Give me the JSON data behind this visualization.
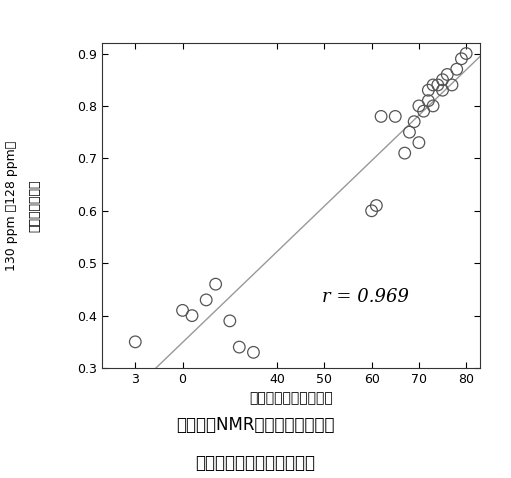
{
  "x_data": [
    10,
    20,
    22,
    25,
    27,
    30,
    32,
    35,
    60,
    61,
    62,
    65,
    67,
    68,
    69,
    70,
    70,
    71,
    72,
    72,
    73,
    73,
    74,
    75,
    75,
    76,
    77,
    78,
    79,
    80
  ],
  "y_data": [
    0.35,
    0.41,
    0.4,
    0.43,
    0.46,
    0.39,
    0.34,
    0.33,
    0.6,
    0.61,
    0.78,
    0.78,
    0.71,
    0.75,
    0.77,
    0.73,
    0.8,
    0.79,
    0.81,
    0.83,
    0.84,
    0.8,
    0.84,
    0.85,
    0.83,
    0.86,
    0.84,
    0.87,
    0.89,
    0.9
  ],
  "xlim": [
    3,
    83
  ],
  "ylim": [
    0.3,
    0.92
  ],
  "yticks": [
    0.3,
    0.4,
    0.5,
    0.6,
    0.7,
    0.8,
    0.9
  ],
  "xlabel": "リノール酸含量（％）",
  "ylabel_line1": "130 ppm 対128 ppmの",
  "ylabel_line2": "シグナル強度比",
  "annotation": "r = 0.969",
  "line_color": "#999999",
  "marker_facecolor": "none",
  "marker_edge_color": "#555555",
  "background_color": "#ffffff",
  "fig_caption_line1": "図３　　NMRシグナル強度比と",
  "fig_caption_line2": "リノール酸含量との散布図"
}
